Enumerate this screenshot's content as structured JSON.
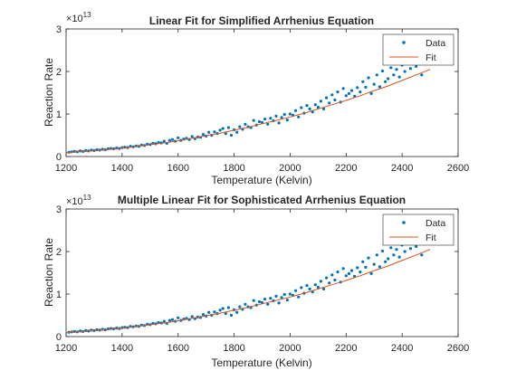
{
  "chart_data": [
    {
      "type": "scatter",
      "title": "Linear Fit for Simplified Arrhenius Equation",
      "xlabel": "Temperature (Kelvin)",
      "ylabel": "Reaction Rate",
      "y_multiplier": "×10",
      "y_exponent": "13",
      "xlim": [
        1200,
        2600
      ],
      "ylim": [
        0,
        3
      ],
      "x_ticks": [
        "1200",
        "1400",
        "1600",
        "1800",
        "2000",
        "2200",
        "2400",
        "2600"
      ],
      "y_ticks": [
        "0",
        "1",
        "2",
        "3"
      ],
      "legend": {
        "position": "top-right",
        "entries": [
          "Data",
          "Fit"
        ]
      },
      "colors": {
        "data": "#0072BD",
        "fit": "#D95319"
      },
      "series": [
        {
          "name": "Data",
          "type": "scatter",
          "x": [
            1210,
            1220,
            1230,
            1240,
            1250,
            1260,
            1270,
            1280,
            1290,
            1300,
            1310,
            1320,
            1330,
            1340,
            1350,
            1360,
            1370,
            1380,
            1390,
            1400,
            1410,
            1420,
            1430,
            1440,
            1450,
            1460,
            1470,
            1480,
            1490,
            1500,
            1510,
            1520,
            1530,
            1540,
            1550,
            1560,
            1570,
            1580,
            1590,
            1600,
            1610,
            1620,
            1630,
            1640,
            1650,
            1660,
            1670,
            1680,
            1690,
            1700,
            1710,
            1720,
            1730,
            1740,
            1750,
            1760,
            1770,
            1780,
            1790,
            1800,
            1810,
            1820,
            1830,
            1840,
            1850,
            1860,
            1870,
            1880,
            1890,
            1900,
            1910,
            1920,
            1930,
            1940,
            1950,
            1960,
            1970,
            1980,
            1990,
            2000,
            2010,
            2020,
            2030,
            2040,
            2050,
            2060,
            2070,
            2080,
            2090,
            2100,
            2110,
            2120,
            2130,
            2140,
            2150,
            2160,
            2170,
            2180,
            2190,
            2200,
            2210,
            2220,
            2230,
            2240,
            2250,
            2260,
            2270,
            2280,
            2290,
            2300,
            2310,
            2320,
            2330,
            2340,
            2350,
            2360,
            2370,
            2380,
            2390,
            2400,
            2410,
            2420,
            2430,
            2440,
            2450,
            2460,
            2470
          ],
          "values": [
            0.1,
            0.11,
            0.12,
            0.11,
            0.13,
            0.12,
            0.14,
            0.13,
            0.15,
            0.14,
            0.16,
            0.15,
            0.17,
            0.16,
            0.18,
            0.19,
            0.18,
            0.2,
            0.19,
            0.21,
            0.22,
            0.21,
            0.24,
            0.23,
            0.25,
            0.24,
            0.27,
            0.26,
            0.29,
            0.28,
            0.31,
            0.3,
            0.33,
            0.32,
            0.36,
            0.31,
            0.38,
            0.4,
            0.36,
            0.44,
            0.38,
            0.41,
            0.43,
            0.4,
            0.47,
            0.42,
            0.46,
            0.45,
            0.52,
            0.48,
            0.57,
            0.5,
            0.58,
            0.54,
            0.62,
            0.66,
            0.54,
            0.68,
            0.5,
            0.63,
            0.57,
            0.7,
            0.64,
            0.76,
            0.7,
            0.68,
            0.85,
            0.74,
            0.82,
            0.8,
            0.88,
            0.76,
            0.9,
            0.84,
            0.95,
            0.79,
            0.92,
            0.99,
            0.86,
            1.0,
            0.97,
            1.08,
            0.93,
            1.15,
            1.02,
            1.2,
            1.12,
            1.05,
            1.22,
            1.16,
            1.3,
            1.12,
            1.38,
            1.26,
            1.45,
            1.33,
            1.52,
            1.28,
            1.6,
            1.43,
            1.48,
            1.55,
            1.42,
            1.62,
            1.52,
            1.76,
            1.63,
            1.85,
            1.48,
            1.7,
            1.92,
            1.64,
            2.01,
            1.76,
            1.83,
            2.09,
            1.92,
            2.05,
            1.87,
            2.15,
            2.0,
            2.2,
            2.07,
            2.25,
            2.12,
            2.29,
            1.92
          ]
        },
        {
          "name": "Fit",
          "type": "line",
          "x": [
            1200,
            1250,
            1300,
            1350,
            1400,
            1450,
            1500,
            1550,
            1600,
            1650,
            1700,
            1750,
            1800,
            1850,
            1900,
            1950,
            2000,
            2050,
            2100,
            2150,
            2200,
            2250,
            2300,
            2350,
            2400,
            2450,
            2500
          ],
          "values": [
            0.09,
            0.12,
            0.14,
            0.17,
            0.2,
            0.24,
            0.28,
            0.32,
            0.37,
            0.43,
            0.49,
            0.55,
            0.62,
            0.69,
            0.77,
            0.85,
            0.93,
            1.02,
            1.12,
            1.22,
            1.32,
            1.43,
            1.55,
            1.66,
            1.79,
            1.92,
            2.05
          ]
        }
      ]
    },
    {
      "type": "scatter",
      "title": "Multiple Linear Fit for Sophisticated Arrhenius Equation",
      "xlabel": "Temperature (Kelvin)",
      "ylabel": "Reaction Rate",
      "y_multiplier": "×10",
      "y_exponent": "13",
      "xlim": [
        1200,
        2600
      ],
      "ylim": [
        0,
        3
      ],
      "x_ticks": [
        "1200",
        "1400",
        "1600",
        "1800",
        "2000",
        "2200",
        "2400",
        "2600"
      ],
      "y_ticks": [
        "0",
        "1",
        "2",
        "3"
      ],
      "legend": {
        "position": "top-right",
        "entries": [
          "Data",
          "Fit"
        ]
      },
      "colors": {
        "data": "#0072BD",
        "fit": "#D95319"
      },
      "series": [
        {
          "name": "Data",
          "type": "scatter",
          "x": [
            1210,
            1220,
            1230,
            1240,
            1250,
            1260,
            1270,
            1280,
            1290,
            1300,
            1310,
            1320,
            1330,
            1340,
            1350,
            1360,
            1370,
            1380,
            1390,
            1400,
            1410,
            1420,
            1430,
            1440,
            1450,
            1460,
            1470,
            1480,
            1490,
            1500,
            1510,
            1520,
            1530,
            1540,
            1550,
            1560,
            1570,
            1580,
            1590,
            1600,
            1610,
            1620,
            1630,
            1640,
            1650,
            1660,
            1670,
            1680,
            1690,
            1700,
            1710,
            1720,
            1730,
            1740,
            1750,
            1760,
            1770,
            1780,
            1790,
            1800,
            1810,
            1820,
            1830,
            1840,
            1850,
            1860,
            1870,
            1880,
            1890,
            1900,
            1910,
            1920,
            1930,
            1940,
            1950,
            1960,
            1970,
            1980,
            1990,
            2000,
            2010,
            2020,
            2030,
            2040,
            2050,
            2060,
            2070,
            2080,
            2090,
            2100,
            2110,
            2120,
            2130,
            2140,
            2150,
            2160,
            2170,
            2180,
            2190,
            2200,
            2210,
            2220,
            2230,
            2240,
            2250,
            2260,
            2270,
            2280,
            2290,
            2300,
            2310,
            2320,
            2330,
            2340,
            2350,
            2360,
            2370,
            2380,
            2390,
            2400,
            2410,
            2420,
            2430,
            2440,
            2450,
            2460,
            2470
          ],
          "values": [
            0.1,
            0.11,
            0.12,
            0.11,
            0.13,
            0.12,
            0.14,
            0.13,
            0.15,
            0.14,
            0.16,
            0.15,
            0.17,
            0.16,
            0.18,
            0.19,
            0.18,
            0.2,
            0.19,
            0.21,
            0.22,
            0.21,
            0.24,
            0.23,
            0.25,
            0.24,
            0.27,
            0.26,
            0.29,
            0.28,
            0.31,
            0.3,
            0.33,
            0.32,
            0.36,
            0.31,
            0.38,
            0.4,
            0.36,
            0.44,
            0.38,
            0.41,
            0.43,
            0.4,
            0.47,
            0.42,
            0.46,
            0.45,
            0.52,
            0.48,
            0.57,
            0.5,
            0.58,
            0.54,
            0.62,
            0.66,
            0.54,
            0.68,
            0.5,
            0.63,
            0.57,
            0.7,
            0.64,
            0.76,
            0.7,
            0.68,
            0.85,
            0.74,
            0.82,
            0.8,
            0.88,
            0.76,
            0.9,
            0.84,
            0.95,
            0.79,
            0.92,
            0.99,
            0.86,
            1.0,
            0.97,
            1.08,
            0.93,
            1.15,
            1.02,
            1.2,
            1.12,
            1.05,
            1.22,
            1.16,
            1.3,
            1.12,
            1.38,
            1.26,
            1.45,
            1.33,
            1.52,
            1.28,
            1.6,
            1.43,
            1.48,
            1.55,
            1.42,
            1.62,
            1.52,
            1.76,
            1.63,
            1.85,
            1.48,
            1.7,
            1.92,
            1.64,
            2.01,
            1.76,
            1.83,
            2.09,
            1.92,
            2.05,
            1.87,
            2.15,
            2.0,
            2.2,
            2.07,
            2.25,
            2.12,
            2.29,
            1.92
          ]
        },
        {
          "name": "Fit",
          "type": "line",
          "x": [
            1200,
            1250,
            1300,
            1350,
            1400,
            1450,
            1500,
            1550,
            1600,
            1650,
            1700,
            1750,
            1800,
            1850,
            1900,
            1950,
            2000,
            2050,
            2100,
            2150,
            2200,
            2250,
            2300,
            2350,
            2400,
            2450,
            2500
          ],
          "values": [
            0.09,
            0.12,
            0.14,
            0.17,
            0.2,
            0.24,
            0.28,
            0.32,
            0.37,
            0.43,
            0.49,
            0.55,
            0.62,
            0.69,
            0.77,
            0.85,
            0.93,
            1.02,
            1.12,
            1.22,
            1.32,
            1.43,
            1.55,
            1.66,
            1.79,
            1.92,
            2.05
          ]
        }
      ]
    }
  ]
}
